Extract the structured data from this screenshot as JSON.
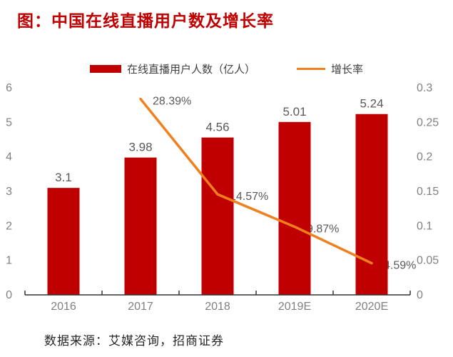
{
  "title": "图：中国在线直播用户数及增长率",
  "source": "数据来源：艾媒咨询，招商证券",
  "legend": {
    "bar_label": "在线直播用户人数（亿人）",
    "line_label": "增长率"
  },
  "colors": {
    "title": "#C00000",
    "bar": "#C00000",
    "line": "#F0801F",
    "axis_line": "#333333",
    "axis_text": "#808080",
    "value_text": "#595959"
  },
  "chart_data": {
    "type": "bar",
    "subtype": "bar+line combo",
    "title": "图：中国在线直播用户数及增长率",
    "categories": [
      "2016",
      "2017",
      "2018",
      "2019E",
      "2020E"
    ],
    "series": [
      {
        "name": "在线直播用户人数（亿人）",
        "type": "bar",
        "axis": "left",
        "values": [
          3.1,
          3.98,
          4.56,
          5.01,
          5.24
        ],
        "labels": [
          "3.1",
          "3.98",
          "4.56",
          "5.01",
          "5.24"
        ]
      },
      {
        "name": "增长率",
        "type": "line",
        "axis": "right",
        "values": [
          null,
          0.2839,
          0.1457,
          0.0987,
          0.0459
        ],
        "labels": [
          "",
          "28.39%",
          "14.57%",
          "9.87%",
          "4.59%"
        ]
      }
    ],
    "left_axis": {
      "min": 0,
      "max": 6,
      "ticks": [
        "0",
        "1",
        "2",
        "3",
        "4",
        "5",
        "6"
      ]
    },
    "right_axis": {
      "min": 0,
      "max": 0.3,
      "ticks": [
        "0",
        "0.05",
        "0.1",
        "0.15",
        "0.2",
        "0.25",
        "0.3"
      ]
    },
    "grid": false,
    "legend_position": "top"
  }
}
